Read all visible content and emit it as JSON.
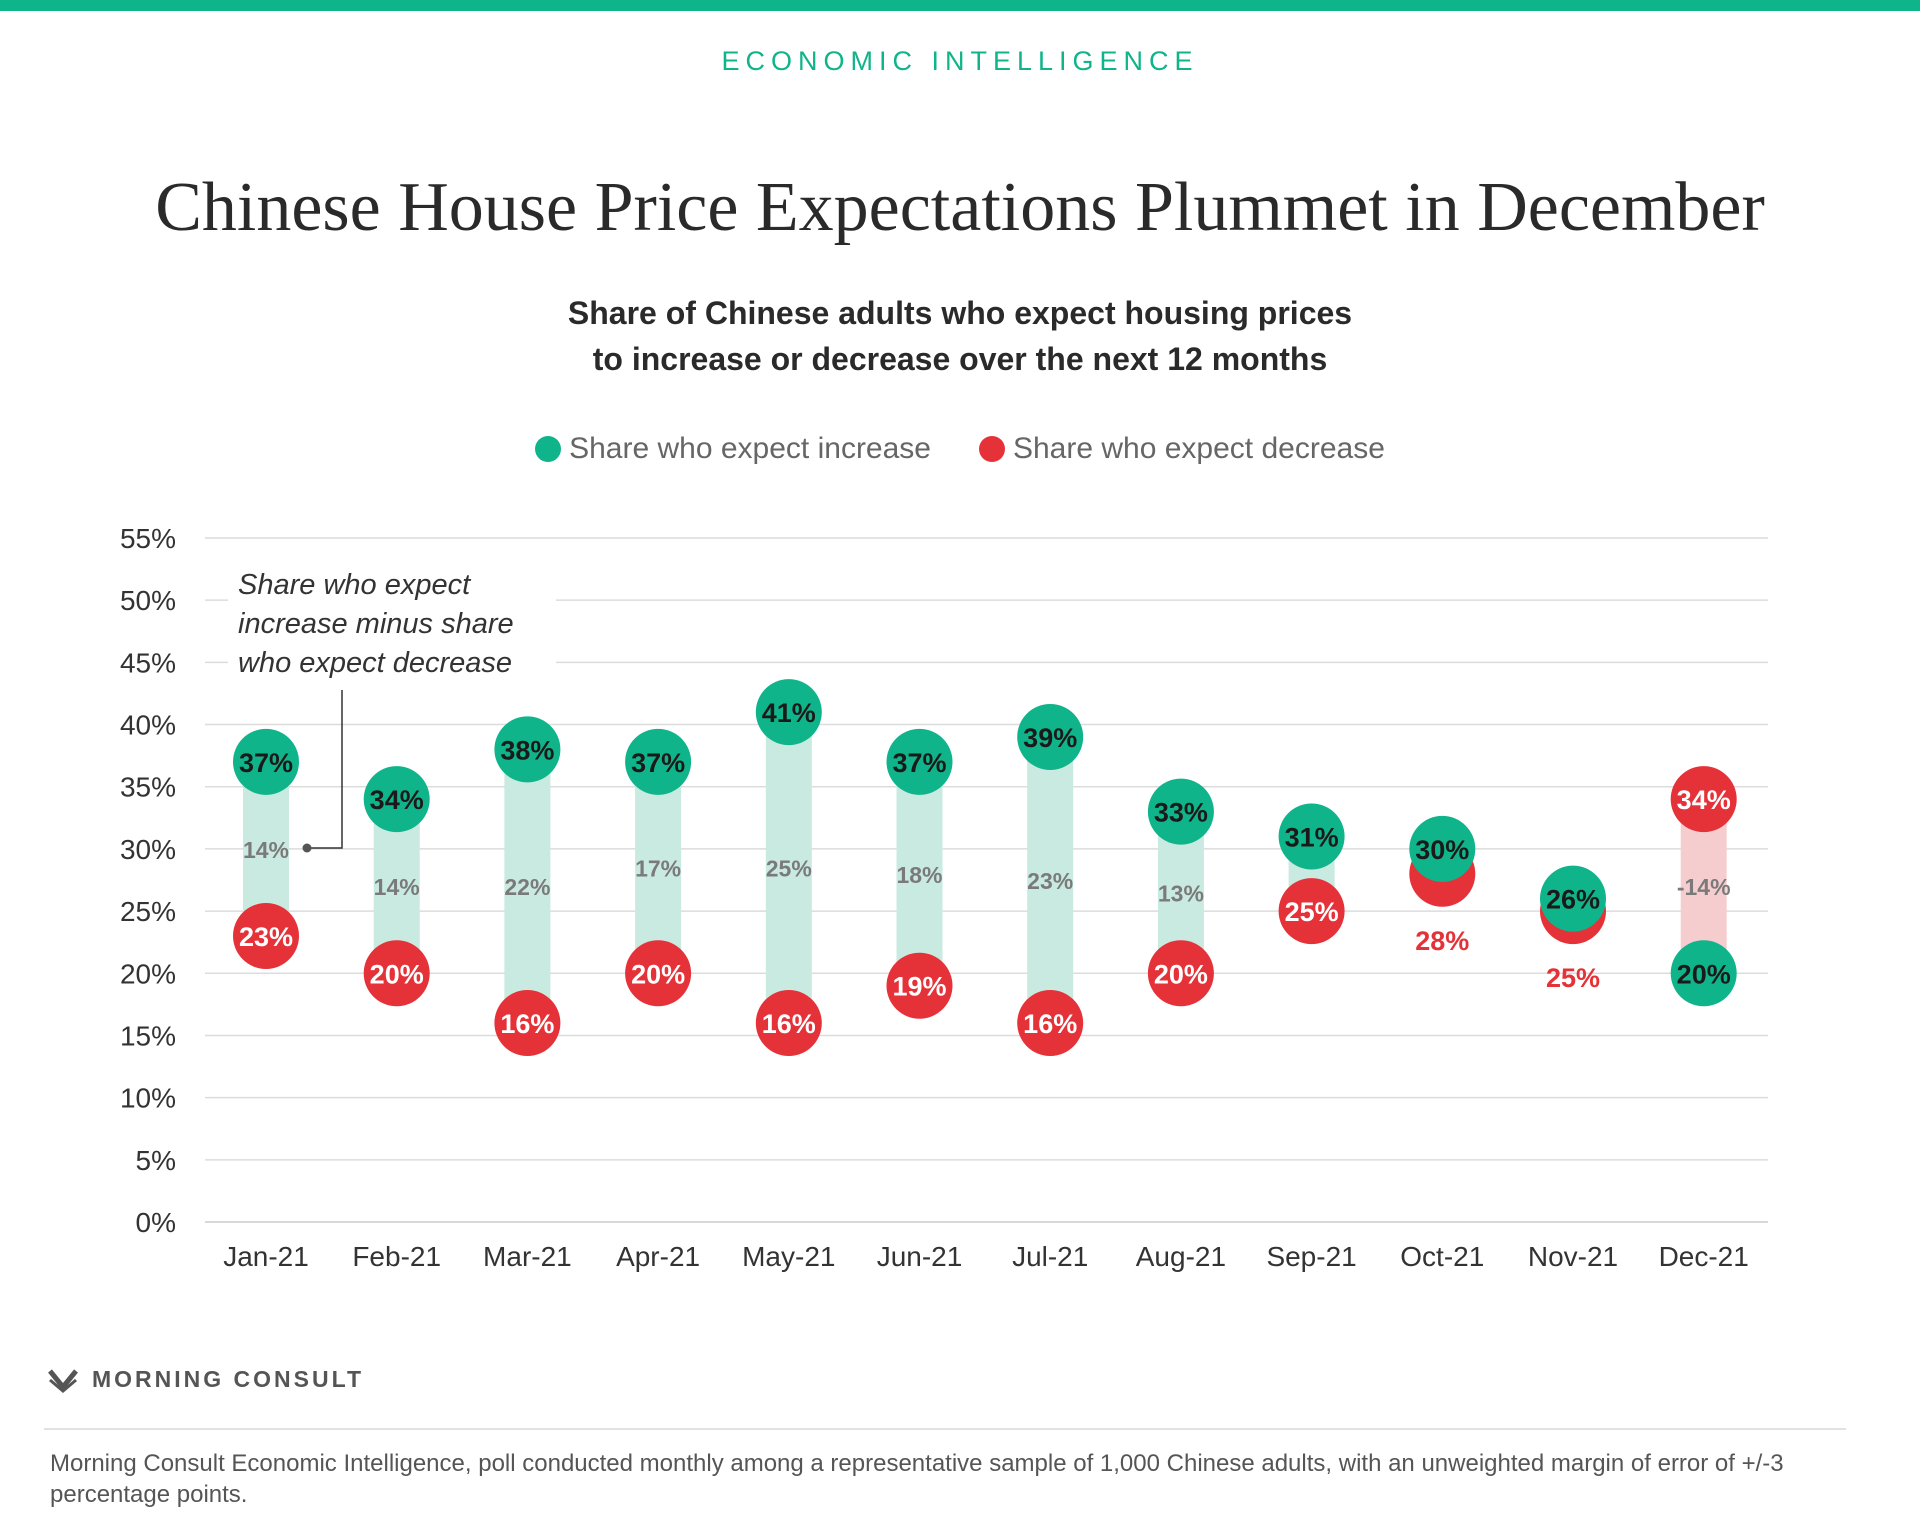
{
  "header": {
    "kicker": "ECONOMIC INTELLIGENCE",
    "title": "Chinese House Price Expectations Plummet in December",
    "subtitle_line1": "Share of Chinese adults who expect housing prices",
    "subtitle_line2": "to increase or decrease over the next 12 months"
  },
  "legend": {
    "increase_label": "Share who expect increase",
    "decrease_label": "Share who expect decrease"
  },
  "colors": {
    "increase": "#10b48a",
    "decrease": "#e53238",
    "range_positive": "#c9eae0",
    "range_negative": "#f6cdcf",
    "grid": "#dcdcdc",
    "annotation": "#333333"
  },
  "annotation": {
    "line1": "Share who expect",
    "line2": "increase minus share",
    "line3": "who expect decrease"
  },
  "chart_data": {
    "type": "dot-range",
    "title": "Chinese House Price Expectations Plummet in December",
    "subtitle": "Share of Chinese adults who expect housing prices to increase or decrease over the next 12 months",
    "categories": [
      "Jan-21",
      "Feb-21",
      "Mar-21",
      "Apr-21",
      "May-21",
      "Jun-21",
      "Jul-21",
      "Aug-21",
      "Sep-21",
      "Oct-21",
      "Nov-21",
      "Dec-21"
    ],
    "series": [
      {
        "name": "Share who expect increase",
        "values": [
          37,
          34,
          38,
          37,
          41,
          37,
          39,
          33,
          31,
          30,
          26,
          20
        ]
      },
      {
        "name": "Share who expect decrease",
        "values": [
          23,
          20,
          16,
          20,
          16,
          19,
          16,
          20,
          25,
          28,
          25,
          34
        ]
      }
    ],
    "difference_labels": [
      "14%",
      "14%",
      "22%",
      "17%",
      "25%",
      "18%",
      "23%",
      "13%",
      "",
      "",
      "",
      "-14%"
    ],
    "ylim": [
      0,
      55
    ],
    "yticks": [
      "0%",
      "5%",
      "10%",
      "15%",
      "20%",
      "25%",
      "30%",
      "35%",
      "40%",
      "45%",
      "50%",
      "55%"
    ],
    "grid": true,
    "legend_position": "top-center"
  },
  "footer": {
    "logo_text": "MORNING CONSULT",
    "footnote": "Morning Consult Economic Intelligence, poll conducted monthly among a representative sample of 1,000 Chinese adults, with an unweighted margin of error of +/-3 percentage points."
  }
}
